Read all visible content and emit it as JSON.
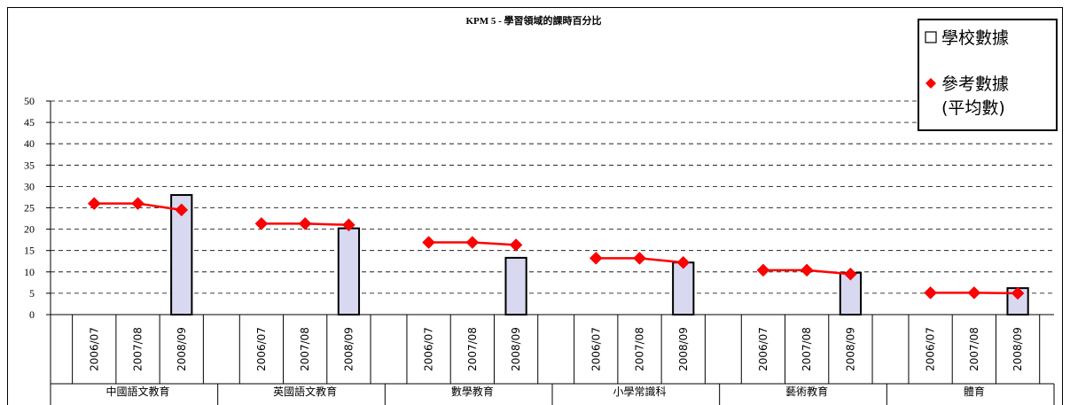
{
  "chart_data": {
    "type": "bar",
    "title": "KPM 5 - 學習領域的課時百分比",
    "ylim": [
      0,
      50
    ],
    "yticks": [
      0,
      5,
      10,
      15,
      20,
      25,
      30,
      35,
      40,
      45,
      50
    ],
    "grid": true,
    "legend_position": "top-right",
    "years": [
      "2006/07",
      "2007/08",
      "2008/09"
    ],
    "groups": [
      "中國語文教育",
      "英國語文教育",
      "數學教育",
      "小學常識科",
      "藝術教育",
      "體育"
    ],
    "series": [
      {
        "name": "學校數據",
        "kind": "bar",
        "color": "#d8d8f0",
        "values": [
          [
            null,
            null,
            28.0
          ],
          [
            null,
            null,
            20.2
          ],
          [
            null,
            null,
            13.3
          ],
          [
            null,
            null,
            12.2
          ],
          [
            null,
            null,
            9.8
          ],
          [
            null,
            null,
            6.2
          ]
        ]
      },
      {
        "name": "參考數據\n(平均數)",
        "kind": "line",
        "color": "#ff0000",
        "values": [
          [
            26.0,
            26.0,
            24.5
          ],
          [
            21.3,
            21.3,
            21.0
          ],
          [
            16.9,
            16.9,
            16.3
          ],
          [
            13.2,
            13.2,
            12.2
          ],
          [
            10.4,
            10.4,
            9.5
          ],
          [
            5.1,
            5.1,
            5.0
          ]
        ]
      }
    ]
  },
  "legend": {
    "school_label": "學校數據",
    "ref_label_line1": "參考數據",
    "ref_label_line2": "(平均數)"
  }
}
